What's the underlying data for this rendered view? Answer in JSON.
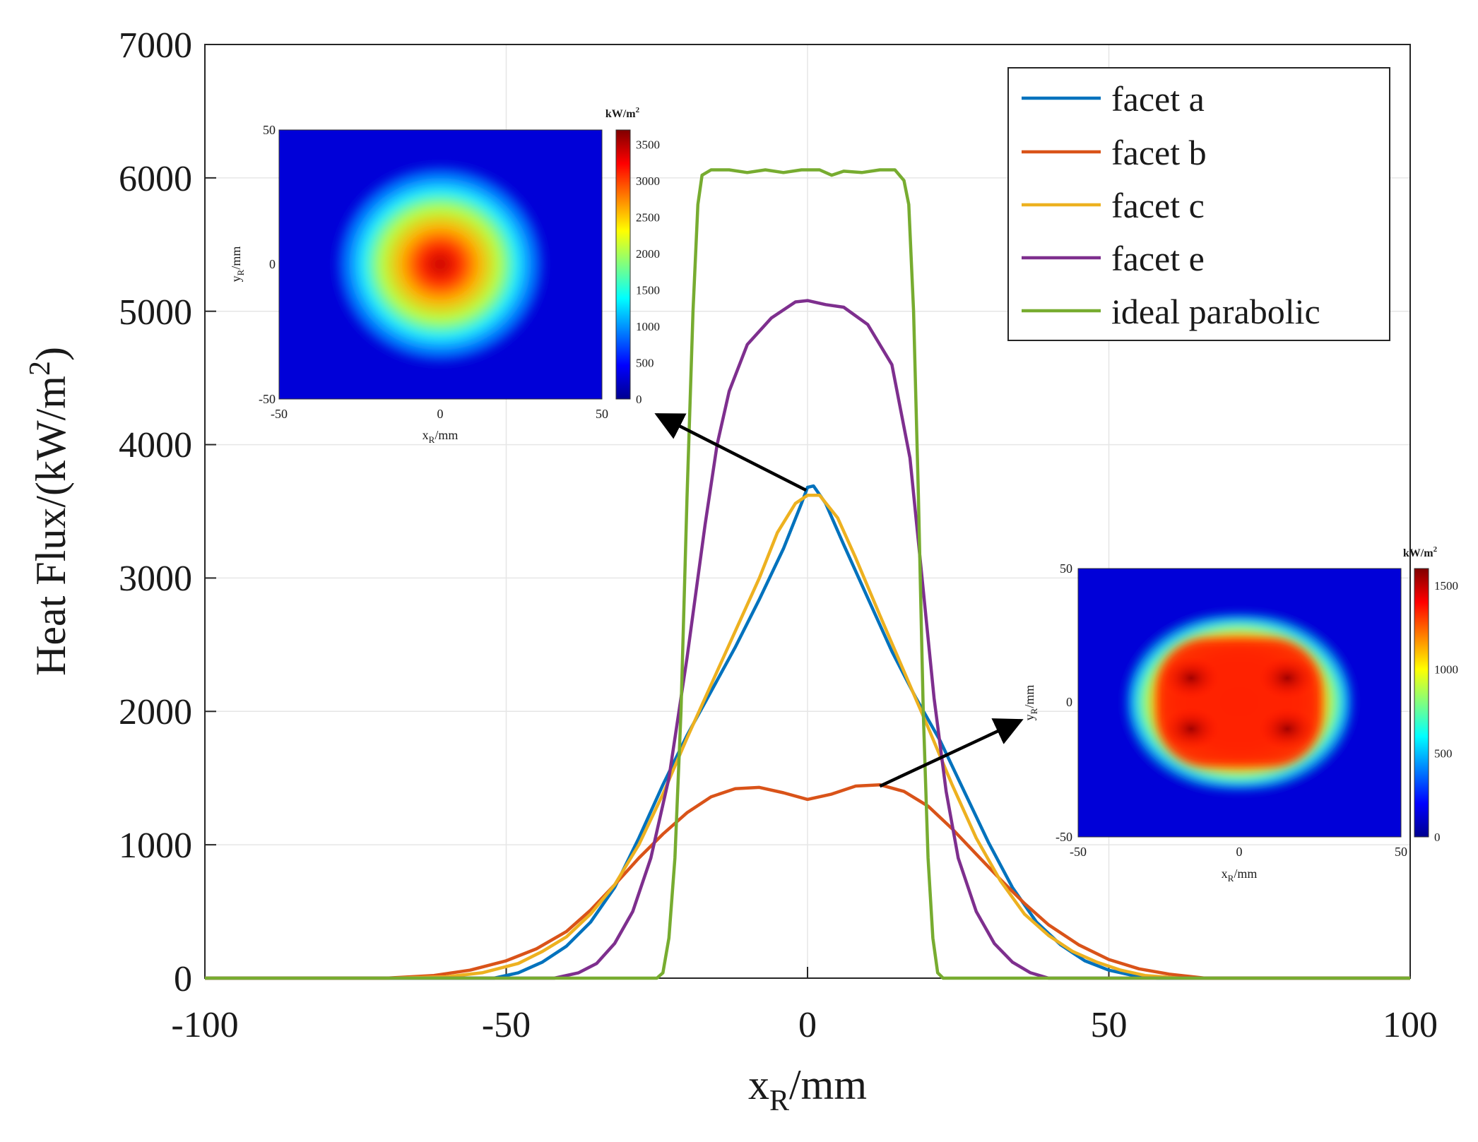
{
  "chart_data": {
    "type": "line",
    "xlabel": "x",
    "xlabel_sub": "R",
    "xlabel_unit": "/mm",
    "ylabel": "Heat Flux/(kW/m",
    "ylabel_sup": "2",
    "ylabel_tail": ")",
    "xlim": [
      -100,
      100
    ],
    "ylim": [
      0,
      7000
    ],
    "xticks": [
      "-100",
      "-50",
      "0",
      "50",
      "100"
    ],
    "yticks": [
      "0",
      "1000",
      "2000",
      "3000",
      "4000",
      "5000",
      "6000",
      "7000"
    ],
    "grid": true,
    "legend_position": "top-right",
    "series": [
      {
        "name": "facet a",
        "color": "#0072BD",
        "points": [
          [
            -100,
            0
          ],
          [
            -65,
            0
          ],
          [
            -52,
            0
          ],
          [
            -48,
            40
          ],
          [
            -44,
            120
          ],
          [
            -40,
            240
          ],
          [
            -36,
            420
          ],
          [
            -32,
            680
          ],
          [
            -28,
            1050
          ],
          [
            -24,
            1450
          ],
          [
            -20,
            1820
          ],
          [
            -16,
            2150
          ],
          [
            -12,
            2480
          ],
          [
            -8,
            2840
          ],
          [
            -4,
            3220
          ],
          [
            -1,
            3560
          ],
          [
            0,
            3680
          ],
          [
            1,
            3690
          ],
          [
            3,
            3560
          ],
          [
            6,
            3250
          ],
          [
            10,
            2850
          ],
          [
            14,
            2450
          ],
          [
            18,
            2100
          ],
          [
            22,
            1780
          ],
          [
            26,
            1400
          ],
          [
            30,
            1020
          ],
          [
            34,
            680
          ],
          [
            38,
            420
          ],
          [
            42,
            250
          ],
          [
            46,
            130
          ],
          [
            50,
            60
          ],
          [
            54,
            20
          ],
          [
            58,
            0
          ],
          [
            100,
            0
          ]
        ]
      },
      {
        "name": "facet b",
        "color": "#D95319",
        "points": [
          [
            -100,
            0
          ],
          [
            -70,
            0
          ],
          [
            -62,
            20
          ],
          [
            -56,
            60
          ],
          [
            -50,
            130
          ],
          [
            -45,
            220
          ],
          [
            -40,
            350
          ],
          [
            -36,
            510
          ],
          [
            -32,
            700
          ],
          [
            -28,
            900
          ],
          [
            -24,
            1080
          ],
          [
            -20,
            1240
          ],
          [
            -16,
            1360
          ],
          [
            -12,
            1420
          ],
          [
            -8,
            1430
          ],
          [
            -4,
            1390
          ],
          [
            0,
            1340
          ],
          [
            4,
            1380
          ],
          [
            8,
            1440
          ],
          [
            12,
            1450
          ],
          [
            16,
            1400
          ],
          [
            20,
            1290
          ],
          [
            24,
            1120
          ],
          [
            28,
            930
          ],
          [
            32,
            740
          ],
          [
            36,
            560
          ],
          [
            40,
            400
          ],
          [
            45,
            250
          ],
          [
            50,
            140
          ],
          [
            55,
            70
          ],
          [
            60,
            30
          ],
          [
            66,
            0
          ],
          [
            100,
            0
          ]
        ]
      },
      {
        "name": "facet c",
        "color": "#EDB120",
        "points": [
          [
            -100,
            0
          ],
          [
            -70,
            0
          ],
          [
            -60,
            10
          ],
          [
            -54,
            40
          ],
          [
            -48,
            110
          ],
          [
            -44,
            200
          ],
          [
            -40,
            310
          ],
          [
            -36,
            480
          ],
          [
            -32,
            700
          ],
          [
            -28,
            1000
          ],
          [
            -24,
            1380
          ],
          [
            -20,
            1800
          ],
          [
            -16,
            2200
          ],
          [
            -12,
            2600
          ],
          [
            -8,
            3000
          ],
          [
            -5,
            3340
          ],
          [
            -2,
            3560
          ],
          [
            0,
            3620
          ],
          [
            2,
            3620
          ],
          [
            5,
            3450
          ],
          [
            8,
            3150
          ],
          [
            12,
            2720
          ],
          [
            16,
            2300
          ],
          [
            20,
            1880
          ],
          [
            24,
            1450
          ],
          [
            28,
            1050
          ],
          [
            32,
            730
          ],
          [
            36,
            480
          ],
          [
            40,
            320
          ],
          [
            44,
            200
          ],
          [
            48,
            120
          ],
          [
            52,
            60
          ],
          [
            56,
            20
          ],
          [
            62,
            0
          ],
          [
            100,
            0
          ]
        ]
      },
      {
        "name": "facet e",
        "color": "#7E2F8E",
        "points": [
          [
            -100,
            0
          ],
          [
            -42,
            0
          ],
          [
            -38,
            40
          ],
          [
            -35,
            110
          ],
          [
            -32,
            260
          ],
          [
            -29,
            500
          ],
          [
            -26,
            900
          ],
          [
            -23,
            1500
          ],
          [
            -20,
            2400
          ],
          [
            -17,
            3400
          ],
          [
            -15,
            4000
          ],
          [
            -13,
            4400
          ],
          [
            -10,
            4750
          ],
          [
            -6,
            4950
          ],
          [
            -2,
            5070
          ],
          [
            0,
            5080
          ],
          [
            3,
            5050
          ],
          [
            6,
            5030
          ],
          [
            10,
            4900
          ],
          [
            14,
            4600
          ],
          [
            17,
            3900
          ],
          [
            19,
            3000
          ],
          [
            21,
            2100
          ],
          [
            23,
            1400
          ],
          [
            25,
            900
          ],
          [
            28,
            500
          ],
          [
            31,
            260
          ],
          [
            34,
            120
          ],
          [
            37,
            40
          ],
          [
            40,
            0
          ],
          [
            100,
            0
          ]
        ]
      },
      {
        "name": "ideal parabolic",
        "color": "#77AC30",
        "points": [
          [
            -100,
            0
          ],
          [
            -25,
            0
          ],
          [
            -24,
            40
          ],
          [
            -23,
            300
          ],
          [
            -22,
            900
          ],
          [
            -21,
            2000
          ],
          [
            -20,
            3600
          ],
          [
            -19,
            5000
          ],
          [
            -18.2,
            5800
          ],
          [
            -17.5,
            6020
          ],
          [
            -16,
            6060
          ],
          [
            -13,
            6060
          ],
          [
            -10,
            6040
          ],
          [
            -7,
            6060
          ],
          [
            -4,
            6040
          ],
          [
            -1,
            6060
          ],
          [
            2,
            6060
          ],
          [
            4,
            6020
          ],
          [
            6,
            6050
          ],
          [
            9,
            6040
          ],
          [
            12,
            6060
          ],
          [
            14.5,
            6060
          ],
          [
            16,
            5980
          ],
          [
            16.8,
            5800
          ],
          [
            17.6,
            5000
          ],
          [
            18.4,
            3600
          ],
          [
            19.2,
            2000
          ],
          [
            20,
            900
          ],
          [
            20.8,
            300
          ],
          [
            21.6,
            40
          ],
          [
            22.5,
            0
          ],
          [
            100,
            0
          ]
        ]
      }
    ],
    "insets": [
      {
        "name": "facet a flux map",
        "xlabel": "x",
        "xlabel_sub": "R",
        "xlabel_unit": "/mm",
        "ylabel": "y",
        "ylabel_sub": "R",
        "ylabel_unit": "/mm",
        "xlim": [
          -50,
          50
        ],
        "ylim": [
          -50,
          50
        ],
        "xticks": [
          "-50",
          "0",
          "50"
        ],
        "yticks": [
          "-50",
          "0",
          "50"
        ],
        "colorbar_unit": "kW/m",
        "colorbar_unit_sup": "2",
        "colorbar_range": [
          0,
          3700
        ],
        "colorbar_ticks": [
          "0",
          "500",
          "1000",
          "1500",
          "2000",
          "2500",
          "3000",
          "3500"
        ],
        "colorbar_values": [
          0,
          500,
          1000,
          1500,
          2000,
          2500,
          3000,
          3500
        ],
        "pattern": "single-peak",
        "annotation_target": [
          0,
          3690
        ]
      },
      {
        "name": "facet b flux map",
        "xlabel": "x",
        "xlabel_sub": "R",
        "xlabel_unit": "/mm",
        "ylabel": "y",
        "ylabel_sub": "R",
        "ylabel_unit": "/mm",
        "xlim": [
          -50,
          50
        ],
        "ylim": [
          -50,
          50
        ],
        "xticks": [
          "-50",
          "0",
          "50"
        ],
        "yticks": [
          "-50",
          "0",
          "50"
        ],
        "colorbar_unit": "kW/m",
        "colorbar_unit_sup": "2",
        "colorbar_range": [
          0,
          1600
        ],
        "colorbar_ticks": [
          "0",
          "500",
          "1000",
          "1500"
        ],
        "colorbar_values": [
          0,
          500,
          1000,
          1500
        ],
        "pattern": "four-peak",
        "annotation_target": [
          12,
          1450
        ]
      }
    ]
  }
}
